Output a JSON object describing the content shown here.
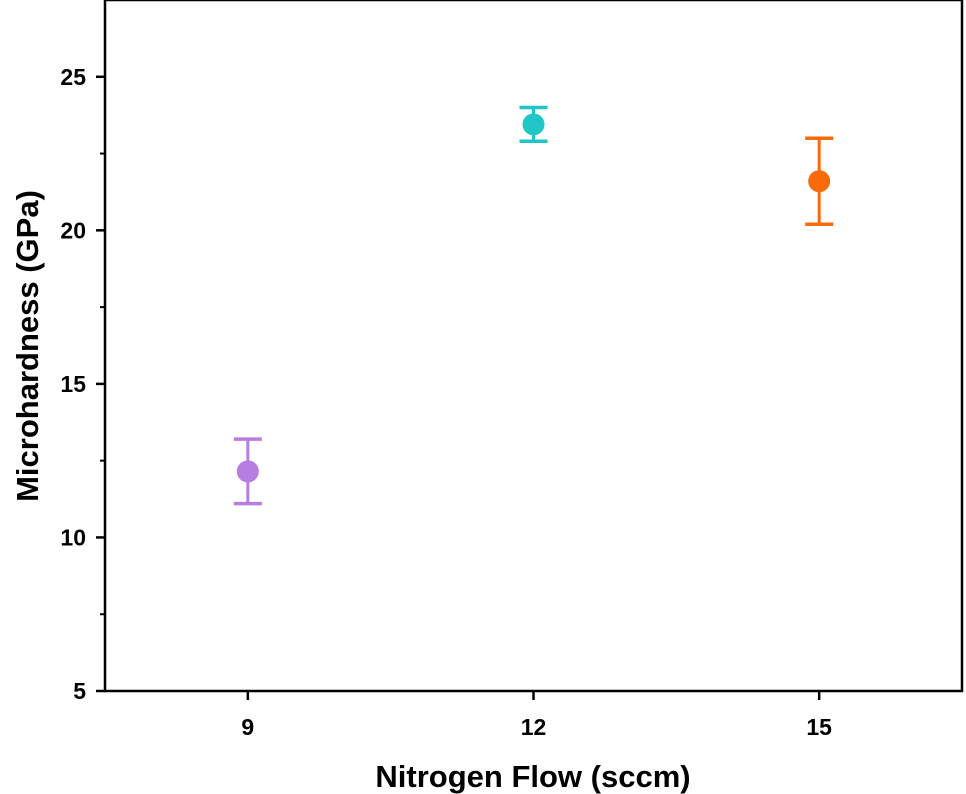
{
  "chart_data": {
    "type": "scatter",
    "title": "",
    "xlabel": "Nitrogen Flow (sccm)",
    "ylabel": "Microhardness (GPa)",
    "x_ticks": [
      "9",
      "12",
      "15"
    ],
    "y_ticks": [
      "5",
      "10",
      "15",
      "20",
      "25"
    ],
    "xlim": [
      7.5,
      16.5
    ],
    "ylim": [
      5,
      27.5
    ],
    "grid": false,
    "points": [
      {
        "x": 9,
        "y": 12.15,
        "err_low": 11.1,
        "err_high": 13.2,
        "color": "#b57ee0"
      },
      {
        "x": 12,
        "y": 23.45,
        "err_low": 22.9,
        "err_high": 24.0,
        "color": "#1fc6c3"
      },
      {
        "x": 15,
        "y": 21.6,
        "err_low": 20.2,
        "err_high": 23.0,
        "color": "#fa6a0a"
      }
    ]
  }
}
